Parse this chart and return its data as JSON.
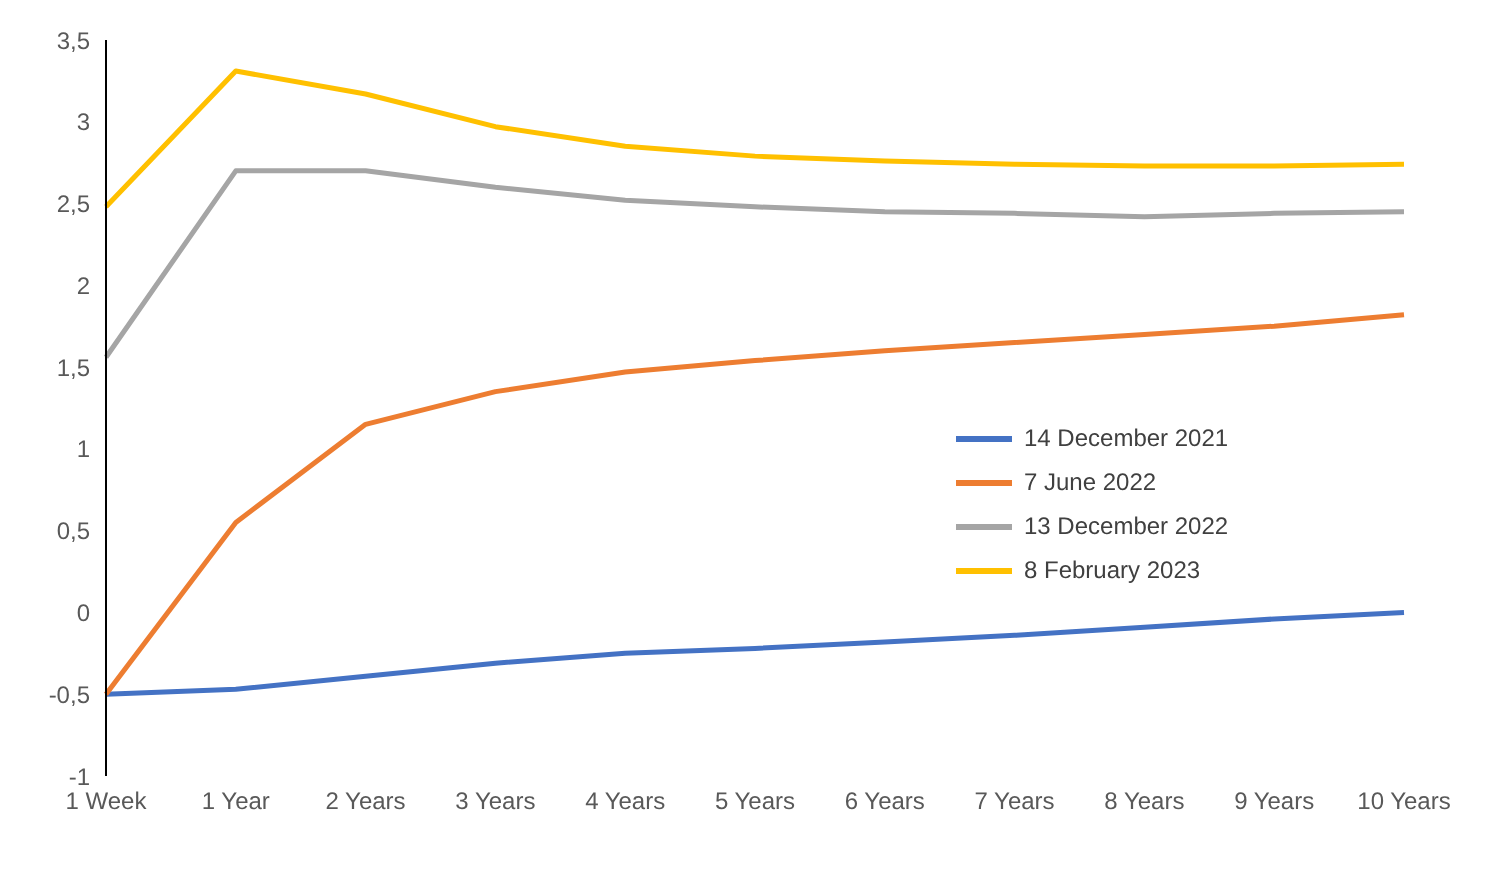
{
  "chart_data": {
    "type": "line",
    "categories": [
      "1 Week",
      "1 Year",
      "2 Years",
      "3 Years",
      "4 Years",
      "5 Years",
      "6 Years",
      "7 Years",
      "8 Years",
      "9 Years",
      "10 Years"
    ],
    "series": [
      {
        "name": "14 December 2021",
        "color": "#4472c4",
        "values": [
          -0.5,
          -0.47,
          -0.39,
          -0.31,
          -0.25,
          -0.22,
          -0.18,
          -0.14,
          -0.09,
          -0.04,
          0.0
        ]
      },
      {
        "name": "7 June 2022",
        "color": "#ed7d31",
        "values": [
          -0.5,
          0.55,
          1.15,
          1.35,
          1.47,
          1.54,
          1.6,
          1.65,
          1.7,
          1.75,
          1.82
        ]
      },
      {
        "name": "13 December 2022",
        "color": "#a5a5a5",
        "values": [
          1.56,
          2.7,
          2.7,
          2.6,
          2.52,
          2.48,
          2.45,
          2.44,
          2.42,
          2.44,
          2.45
        ]
      },
      {
        "name": "8 February 2023",
        "color": "#ffc000",
        "values": [
          2.48,
          3.31,
          3.17,
          2.97,
          2.85,
          2.79,
          2.76,
          2.74,
          2.73,
          2.73,
          2.74
        ]
      }
    ],
    "ylim": [
      -1,
      3.5
    ],
    "yticks": [
      {
        "value": -1,
        "label": "-1"
      },
      {
        "value": -0.5,
        "label": "-0,5"
      },
      {
        "value": 0,
        "label": "0"
      },
      {
        "value": 0.5,
        "label": "0,5"
      },
      {
        "value": 1,
        "label": "1"
      },
      {
        "value": 1.5,
        "label": "1,5"
      },
      {
        "value": 2,
        "label": "2"
      },
      {
        "value": 2.5,
        "label": "2,5"
      },
      {
        "value": 3,
        "label": "3"
      },
      {
        "value": 3.5,
        "label": "3,5"
      }
    ],
    "grid": false,
    "legend": "right",
    "marker": "none",
    "line_style": "solid"
  }
}
